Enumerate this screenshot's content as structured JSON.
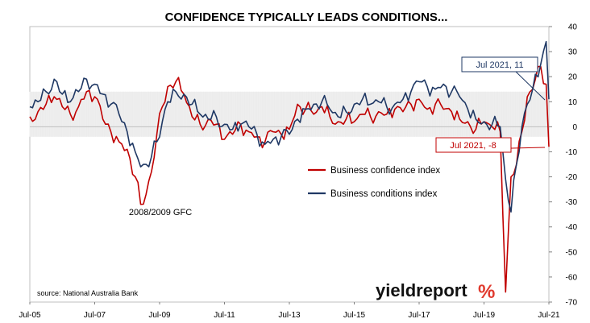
{
  "chart_data": {
    "type": "line",
    "title": "CONFIDENCE TYPICALLY LEADS CONDITIONS...",
    "x_tick_labels": [
      "Jul-05",
      "Jul-07",
      "Jul-09",
      "Jul-11",
      "Jul-13",
      "Jul-15",
      "Jul-17",
      "Jul-19",
      "Jul-21"
    ],
    "x_start": "2005-07",
    "x_end": "2021-07",
    "ylim": [
      -70,
      40
    ],
    "y_ticks": [
      -70,
      -60,
      -50,
      -40,
      -30,
      -20,
      -10,
      0,
      10,
      20,
      30,
      40
    ],
    "y_axis_side": "right",
    "shaded_band": [
      -4,
      14
    ],
    "legend": {
      "placement": "center",
      "items": [
        "Business confidence index",
        "Business conditions index"
      ]
    },
    "colors": {
      "confidence": "#c00000",
      "conditions": "#1f3864",
      "band": "#d9d9d9",
      "logo_accent": "#e03a2e"
    },
    "series": [
      {
        "name": "Business confidence index",
        "points": [
          [
            "2005-07",
            4
          ],
          [
            "2005-10",
            6
          ],
          [
            "2006-01",
            9
          ],
          [
            "2006-04",
            12
          ],
          [
            "2006-07",
            8
          ],
          [
            "2006-10",
            5
          ],
          [
            "2007-01",
            8
          ],
          [
            "2007-04",
            14
          ],
          [
            "2007-07",
            12
          ],
          [
            "2007-10",
            3
          ],
          [
            "2008-01",
            -2
          ],
          [
            "2008-04",
            -6
          ],
          [
            "2008-07",
            -9
          ],
          [
            "2008-10",
            -20
          ],
          [
            "2008-12",
            -31
          ],
          [
            "2009-02",
            -27
          ],
          [
            "2009-04",
            -18
          ],
          [
            "2009-06",
            -3
          ],
          [
            "2009-08",
            8
          ],
          [
            "2009-10",
            16
          ],
          [
            "2010-01",
            18
          ],
          [
            "2010-04",
            13
          ],
          [
            "2010-07",
            4
          ],
          [
            "2010-10",
            1
          ],
          [
            "2011-01",
            3
          ],
          [
            "2011-04",
            1
          ],
          [
            "2011-07",
            -5
          ],
          [
            "2011-10",
            -3
          ],
          [
            "2012-01",
            1
          ],
          [
            "2012-04",
            -2
          ],
          [
            "2012-07",
            -4
          ],
          [
            "2012-10",
            -6
          ],
          [
            "2013-01",
            -2
          ],
          [
            "2013-04",
            -3
          ],
          [
            "2013-07",
            -1
          ],
          [
            "2013-10",
            9
          ],
          [
            "2014-01",
            7
          ],
          [
            "2014-04",
            5
          ],
          [
            "2014-07",
            8
          ],
          [
            "2014-10",
            4
          ],
          [
            "2015-01",
            2
          ],
          [
            "2015-04",
            3
          ],
          [
            "2015-07",
            2
          ],
          [
            "2015-10",
            5
          ],
          [
            "2016-01",
            4
          ],
          [
            "2016-04",
            6
          ],
          [
            "2016-07",
            5
          ],
          [
            "2016-10",
            7
          ],
          [
            "2017-01",
            6
          ],
          [
            "2017-04",
            9
          ],
          [
            "2017-07",
            11
          ],
          [
            "2017-10",
            7
          ],
          [
            "2018-01",
            9
          ],
          [
            "2018-04",
            7
          ],
          [
            "2018-07",
            6
          ],
          [
            "2018-10",
            3
          ],
          [
            "2019-01",
            2
          ],
          [
            "2019-04",
            -1
          ],
          [
            "2019-07",
            2
          ],
          [
            "2019-10",
            0
          ],
          [
            "2020-01",
            -2
          ],
          [
            "2020-03",
            -66
          ],
          [
            "2020-05",
            -20
          ],
          [
            "2020-07",
            -15
          ],
          [
            "2020-09",
            -2
          ],
          [
            "2020-11",
            12
          ],
          [
            "2021-01",
            15
          ],
          [
            "2021-04",
            24
          ],
          [
            "2021-06",
            17
          ],
          [
            "2021-07",
            -8
          ]
        ]
      },
      {
        "name": "Business conditions index",
        "points": [
          [
            "2005-07",
            8
          ],
          [
            "2005-10",
            10
          ],
          [
            "2006-01",
            14
          ],
          [
            "2006-04",
            19
          ],
          [
            "2006-07",
            13
          ],
          [
            "2006-10",
            10
          ],
          [
            "2007-01",
            14
          ],
          [
            "2007-04",
            19
          ],
          [
            "2007-07",
            17
          ],
          [
            "2007-10",
            13
          ],
          [
            "2008-01",
            9
          ],
          [
            "2008-04",
            5
          ],
          [
            "2008-07",
            -2
          ],
          [
            "2008-10",
            -10
          ],
          [
            "2008-12",
            -16
          ],
          [
            "2009-02",
            -15
          ],
          [
            "2009-04",
            -12
          ],
          [
            "2009-06",
            -6
          ],
          [
            "2009-08",
            2
          ],
          [
            "2009-10",
            10
          ],
          [
            "2010-01",
            14
          ],
          [
            "2010-04",
            13
          ],
          [
            "2010-07",
            9
          ],
          [
            "2010-10",
            5
          ],
          [
            "2011-01",
            3
          ],
          [
            "2011-04",
            4
          ],
          [
            "2011-07",
            1
          ],
          [
            "2011-10",
            -1
          ],
          [
            "2012-01",
            1
          ],
          [
            "2012-04",
            0
          ],
          [
            "2012-07",
            -3
          ],
          [
            "2012-10",
            -7
          ],
          [
            "2013-01",
            -5
          ],
          [
            "2013-04",
            -4
          ],
          [
            "2013-07",
            -3
          ],
          [
            "2013-10",
            3
          ],
          [
            "2014-01",
            7
          ],
          [
            "2014-04",
            9
          ],
          [
            "2014-07",
            10
          ],
          [
            "2014-10",
            7
          ],
          [
            "2015-01",
            4
          ],
          [
            "2015-04",
            6
          ],
          [
            "2015-07",
            9
          ],
          [
            "2015-10",
            11
          ],
          [
            "2016-01",
            9
          ],
          [
            "2016-04",
            10
          ],
          [
            "2016-07",
            8
          ],
          [
            "2016-10",
            9
          ],
          [
            "2017-01",
            11
          ],
          [
            "2017-04",
            14
          ],
          [
            "2017-07",
            18
          ],
          [
            "2017-10",
            16
          ],
          [
            "2018-01",
            15
          ],
          [
            "2018-04",
            17
          ],
          [
            "2018-07",
            14
          ],
          [
            "2018-10",
            12
          ],
          [
            "2019-01",
            7
          ],
          [
            "2019-04",
            3
          ],
          [
            "2019-07",
            2
          ],
          [
            "2019-10",
            1
          ],
          [
            "2020-01",
            0
          ],
          [
            "2020-03",
            -21
          ],
          [
            "2020-05",
            -34
          ],
          [
            "2020-07",
            -15
          ],
          [
            "2020-09",
            0
          ],
          [
            "2020-11",
            9
          ],
          [
            "2021-01",
            15
          ],
          [
            "2021-04",
            25
          ],
          [
            "2021-06",
            34
          ],
          [
            "2021-07",
            11
          ]
        ]
      }
    ],
    "annotations": {
      "conditions_label": "Jul 2021, 11",
      "confidence_label": "Jul 2021, -8",
      "gfc_label": "2008/2009 GFC"
    },
    "source": "source: National Australia Bank"
  },
  "logo": {
    "text": "yieldreport",
    "accent": "%"
  }
}
